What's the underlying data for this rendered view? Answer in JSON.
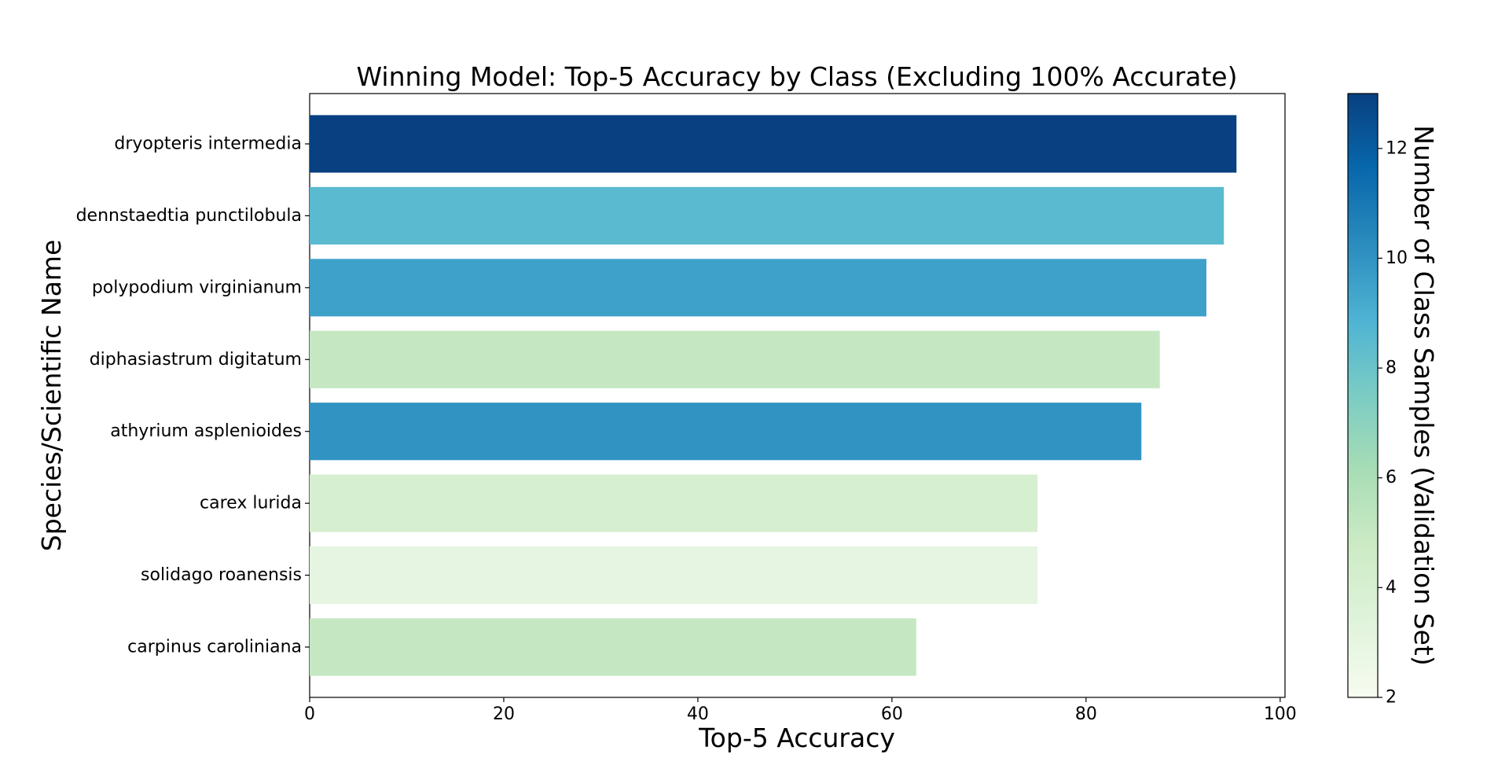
{
  "chart_data": {
    "type": "bar",
    "orientation": "horizontal",
    "title": "Winning Model: Top-5 Accuracy by Class (Excluding 100% Accurate)",
    "xlabel": "Top-5 Accuracy",
    "ylabel": "Species/Scientific Name",
    "xlim": [
      0,
      100.5
    ],
    "xticks": [
      "0",
      "20",
      "40",
      "60",
      "80",
      "100"
    ],
    "grid": false,
    "categories": [
      "dryopteris intermedia",
      "dennstaedtia punctilobula",
      "polypodium virginianum",
      "diphasiastrum digitatum",
      "athyrium asplenioides",
      "carex lurida",
      "solidago roanensis",
      "carpinus caroliniana"
    ],
    "values": [
      95.5,
      94.2,
      92.4,
      87.6,
      85.7,
      75.0,
      75.0,
      62.5
    ],
    "color_values": [
      13,
      8.5,
      9.5,
      5,
      10,
      4,
      3,
      5
    ],
    "colorbar": {
      "label": "Number of Class Samples (Validation Set)",
      "range": [
        2,
        13
      ],
      "ticks": [
        "2",
        "4",
        "6",
        "8",
        "10",
        "12"
      ],
      "colormap": "GnBu",
      "stops": [
        "#f7fcf0",
        "#e0f3db",
        "#ccebc5",
        "#a8ddb5",
        "#7bccc4",
        "#4eb3d3",
        "#2b8cbe",
        "#0868ac",
        "#084081"
      ]
    }
  }
}
